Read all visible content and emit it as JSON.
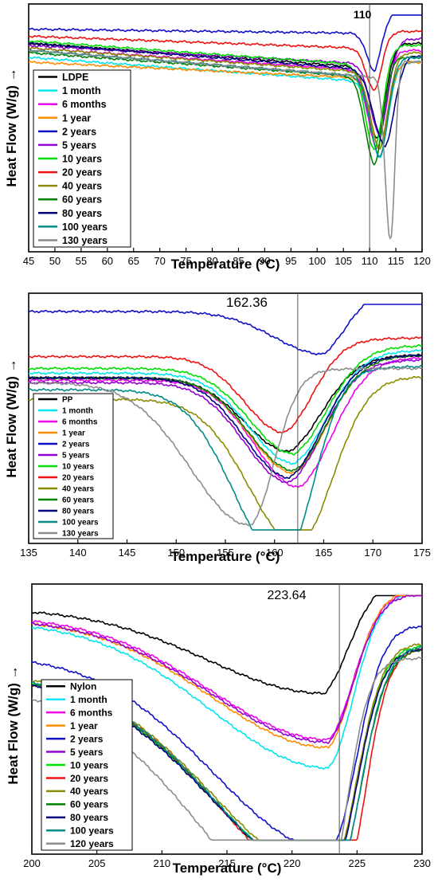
{
  "chart_data": [
    {
      "type": "line",
      "ylabel": "Heat Flow (W/g) →",
      "xlabel": "Temperature (°C)",
      "xlim": [
        45,
        120
      ],
      "xticks": [
        "45",
        "50",
        "55",
        "60",
        "65",
        "70",
        "75",
        "80",
        "85",
        "90",
        "95",
        "100",
        "105",
        "110",
        "115",
        "120"
      ],
      "annotation": "110",
      "vline": 110,
      "legend_position": "bottom-left",
      "series": [
        {
          "name": "LDPE",
          "color": "#000000",
          "peak_x": 111.5,
          "base_start": 0.14,
          "base_end": 0.26,
          "depth": 0.3,
          "tail": 0.12,
          "w": 1.8,
          "wr": 1.6
        },
        {
          "name": "1 month",
          "color": "#00e5ee",
          "peak_x": 112,
          "base_start": 0.2,
          "base_end": 0.32,
          "depth": 0.32,
          "tail": 0.1,
          "w": 1.8,
          "wr": 1.6
        },
        {
          "name": "6 months",
          "color": "#ee00ee",
          "peak_x": 111.5,
          "base_start": 0.16,
          "base_end": 0.27,
          "depth": 0.33,
          "tail": 0.1,
          "w": 1.8,
          "wr": 1.6
        },
        {
          "name": "1 year",
          "color": "#ff8c00",
          "peak_x": 112,
          "base_start": 0.22,
          "base_end": 0.3,
          "depth": 0.3,
          "tail": 0.08,
          "w": 1.8,
          "wr": 1.6
        },
        {
          "name": "2 years",
          "color": "#1010c8",
          "peak_x": 111,
          "base_start": 0.08,
          "base_end": 0.1,
          "depth": 0.16,
          "tail": 0.1,
          "w": 1.5,
          "wr": 1.4
        },
        {
          "name": "5 years",
          "color": "#9400d3",
          "peak_x": 112,
          "base_start": 0.15,
          "base_end": 0.24,
          "depth": 0.3,
          "tail": 0.12,
          "w": 1.8,
          "wr": 1.6
        },
        {
          "name": "10 years",
          "color": "#00dd00",
          "peak_x": 111,
          "base_start": 0.13,
          "base_end": 0.25,
          "depth": 0.36,
          "tail": 0.1,
          "w": 1.8,
          "wr": 1.6
        },
        {
          "name": "20 years",
          "color": "#ee1111",
          "peak_x": 111,
          "base_start": 0.11,
          "base_end": 0.17,
          "depth": 0.18,
          "tail": 0.08,
          "w": 1.6,
          "wr": 1.4
        },
        {
          "name": "40 years",
          "color": "#8b8b00",
          "peak_x": 112,
          "base_start": 0.16,
          "base_end": 0.28,
          "depth": 0.32,
          "tail": 0.1,
          "w": 1.8,
          "wr": 1.6
        },
        {
          "name": "60 years",
          "color": "#008000",
          "peak_x": 111,
          "base_start": 0.18,
          "base_end": 0.3,
          "depth": 0.37,
          "tail": 0.1,
          "w": 1.8,
          "wr": 1.6
        },
        {
          "name": "80 years",
          "color": "#000080",
          "peak_x": 113,
          "base_start": 0.14,
          "base_end": 0.27,
          "depth": 0.32,
          "tail": 0.08,
          "w": 2.2,
          "wr": 1.8
        },
        {
          "name": "100 years",
          "color": "#008b8b",
          "peak_x": 112,
          "base_start": 0.17,
          "base_end": 0.3,
          "depth": 0.34,
          "tail": 0.1,
          "w": 1.8,
          "wr": 1.6
        },
        {
          "name": "130 years",
          "color": "#8c8c8c",
          "peak_x": 114,
          "base_start": 0.17,
          "base_end": 0.3,
          "depth": 0.7,
          "tail": 0.08,
          "w": 1.0,
          "wr": 0.8
        }
      ]
    },
    {
      "type": "line",
      "ylabel": "Heat Flow (W/g) →",
      "xlabel": "Temperature (°C)",
      "xlim": [
        135,
        175
      ],
      "xticks": [
        "135",
        "140",
        "145",
        "150",
        "155",
        "160",
        "165",
        "170",
        "175"
      ],
      "annotation": "162.36",
      "vline": 162.36,
      "legend_position": "bottom-left",
      "series": [
        {
          "name": "PP",
          "color": "#000000",
          "peak_x": 161.5,
          "base_start": 0.33,
          "base_end": 0.33,
          "depth": 0.31,
          "tail": 0.1,
          "w": 4.5,
          "wr": 3.5
        },
        {
          "name": "1 month",
          "color": "#00e5ee",
          "peak_x": 162,
          "base_start": 0.31,
          "base_end": 0.31,
          "depth": 0.38,
          "tail": 0.1,
          "w": 4.5,
          "wr": 3.5
        },
        {
          "name": "6 months",
          "color": "#ee00ee",
          "peak_x": 162.5,
          "base_start": 0.34,
          "base_end": 0.34,
          "depth": 0.45,
          "tail": 0.1,
          "w": 4.5,
          "wr": 3.5
        },
        {
          "name": "1 year",
          "color": "#ff8c00",
          "peak_x": 162,
          "base_start": 0.33,
          "base_end": 0.33,
          "depth": 0.4,
          "tail": 0.1,
          "w": 4.5,
          "wr": 3.5
        },
        {
          "name": "2 years",
          "color": "#1010c8",
          "peak_x": 165,
          "base_start": 0.05,
          "base_end": 0.05,
          "depth": 0.18,
          "tail": 0.1,
          "w": 5.0,
          "wr": 2.5
        },
        {
          "name": "5 years",
          "color": "#9400d3",
          "peak_x": 161.5,
          "base_start": 0.35,
          "base_end": 0.35,
          "depth": 0.42,
          "tail": 0.1,
          "w": 4.5,
          "wr": 3.5
        },
        {
          "name": "10 years",
          "color": "#00dd00",
          "peak_x": 162,
          "base_start": 0.29,
          "base_end": 0.29,
          "depth": 0.36,
          "tail": 0.1,
          "w": 4.5,
          "wr": 3.5
        },
        {
          "name": "20 years",
          "color": "#ee1111",
          "peak_x": 161,
          "base_start": 0.24,
          "base_end": 0.24,
          "depth": 0.32,
          "tail": 0.08,
          "w": 4.0,
          "wr": 3.0
        },
        {
          "name": "40 years",
          "color": "#8b8b00",
          "peak_x": 162.5,
          "base_start": 0.42,
          "base_end": 0.42,
          "depth": 0.62,
          "tail": 0.1,
          "w": 5.0,
          "wr": 3.5
        },
        {
          "name": "60 years",
          "color": "#008000",
          "peak_x": 162,
          "base_start": 0.33,
          "base_end": 0.33,
          "depth": 0.39,
          "tail": 0.1,
          "w": 4.5,
          "wr": 3.5
        },
        {
          "name": "80 years",
          "color": "#000080",
          "peak_x": 161.5,
          "base_start": 0.33,
          "base_end": 0.33,
          "depth": 0.42,
          "tail": 0.1,
          "w": 4.5,
          "wr": 3.5
        },
        {
          "name": "100 years",
          "color": "#008b8b",
          "peak_x": 161,
          "base_start": 0.38,
          "base_end": 0.38,
          "depth": 0.73,
          "tail": 0.1,
          "w": 5.0,
          "wr": 3.0
        },
        {
          "name": "130 years",
          "color": "#8c8c8c",
          "peak_x": 157.5,
          "base_start": 0.35,
          "base_end": 0.35,
          "depth": 0.6,
          "tail": 0.06,
          "w": 6.0,
          "wr": 2.5
        }
      ]
    },
    {
      "type": "line",
      "ylabel": "Heat Flow (W/g) →",
      "xlabel": "Temperature (°C)",
      "xlim": [
        200,
        230
      ],
      "xticks": [
        "200",
        "205",
        "210",
        "215",
        "220",
        "225",
        "230"
      ],
      "annotation": "223.64",
      "vline": 223.64,
      "legend_position": "bottom-left",
      "series": [
        {
          "name": "Nylon",
          "color": "#000000",
          "peak_x": 222.5,
          "base_start": 0.07,
          "base_end": 0.07,
          "depth": 0.33,
          "tail": 0.12,
          "w": 9.0,
          "wr": 2.0
        },
        {
          "name": "1 month",
          "color": "#00e5ee",
          "peak_x": 222.8,
          "base_start": 0.12,
          "base_end": 0.12,
          "depth": 0.57,
          "tail": 0.12,
          "w": 9.0,
          "wr": 2.0
        },
        {
          "name": "6 months",
          "color": "#ee00ee",
          "peak_x": 222.8,
          "base_start": 0.1,
          "base_end": 0.1,
          "depth": 0.48,
          "tail": 0.1,
          "w": 9.0,
          "wr": 2.0
        },
        {
          "name": "1 year",
          "color": "#ff8c00",
          "peak_x": 222.8,
          "base_start": 0.11,
          "base_end": 0.11,
          "depth": 0.5,
          "tail": 0.12,
          "w": 9.0,
          "wr": 2.0
        },
        {
          "name": "2 years",
          "color": "#1010c8",
          "peak_x": 223,
          "base_start": 0.25,
          "base_end": 0.25,
          "depth": 0.76,
          "tail": 0.12,
          "w": 9.0,
          "wr": 2.0
        },
        {
          "name": "5 years",
          "color": "#9400d3",
          "peak_x": 222.8,
          "base_start": 0.11,
          "base_end": 0.11,
          "depth": 0.48,
          "tail": 0.1,
          "w": 9.0,
          "wr": 2.0
        },
        {
          "name": "10 years",
          "color": "#00dd00",
          "peak_x": 223,
          "base_start": 0.33,
          "base_end": 0.33,
          "depth": 0.8,
          "tail": 0.12,
          "w": 9.0,
          "wr": 2.0
        },
        {
          "name": "20 years",
          "color": "#ee1111",
          "peak_x": 223.8,
          "base_start": 0.34,
          "base_end": 0.34,
          "depth": 0.86,
          "tail": 0.12,
          "w": 9.0,
          "wr": 1.8
        },
        {
          "name": "40 years",
          "color": "#8b8b00",
          "peak_x": 223,
          "base_start": 0.32,
          "base_end": 0.32,
          "depth": 0.79,
          "tail": 0.12,
          "w": 9.0,
          "wr": 2.0
        },
        {
          "name": "60 years",
          "color": "#008000",
          "peak_x": 223.3,
          "base_start": 0.34,
          "base_end": 0.34,
          "depth": 0.81,
          "tail": 0.12,
          "w": 9.0,
          "wr": 2.0
        },
        {
          "name": "80 years",
          "color": "#000080",
          "peak_x": 223,
          "base_start": 0.34,
          "base_end": 0.34,
          "depth": 0.79,
          "tail": 0.12,
          "w": 9.0,
          "wr": 2.0
        },
        {
          "name": "100 years",
          "color": "#008b8b",
          "peak_x": 223.3,
          "base_start": 0.33,
          "base_end": 0.33,
          "depth": 0.82,
          "tail": 0.12,
          "w": 9.0,
          "wr": 2.0
        },
        {
          "name": "120 years",
          "color": "#8c8c8c",
          "peak_x": 222.3,
          "base_start": 0.38,
          "base_end": 0.38,
          "depth": 0.92,
          "tail": 0.12,
          "w": 9.0,
          "wr": 1.8
        }
      ]
    }
  ]
}
